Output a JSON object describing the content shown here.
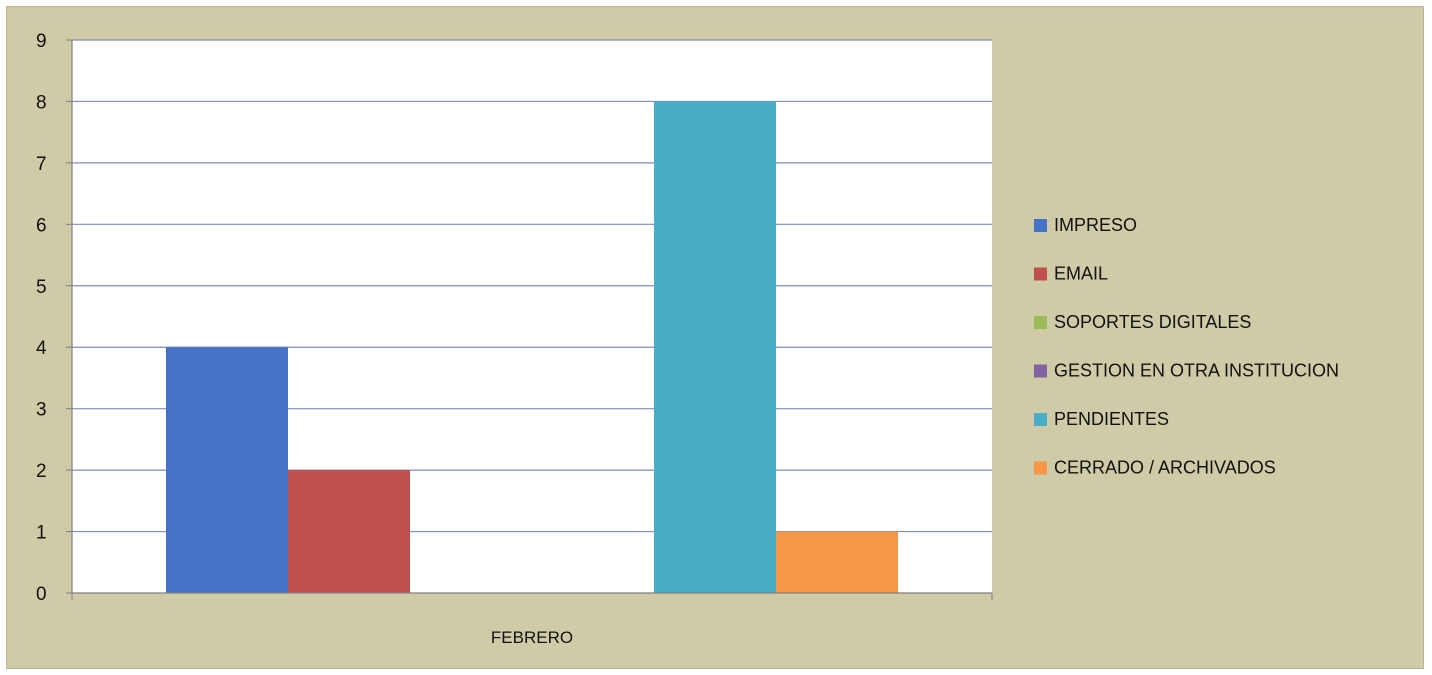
{
  "chart_data": {
    "type": "bar",
    "categories": [
      "FEBRERO"
    ],
    "series": [
      {
        "name": "IMPRESO",
        "values": [
          4
        ],
        "color": "#4472c4"
      },
      {
        "name": "EMAIL",
        "values": [
          2
        ],
        "color": "#c0504d"
      },
      {
        "name": "SOPORTES DIGITALES",
        "values": [
          0
        ],
        "color": "#9bbb59"
      },
      {
        "name": "GESTION EN OTRA INSTITUCION",
        "values": [
          0
        ],
        "color": "#8064a2"
      },
      {
        "name": "PENDIENTES",
        "values": [
          8
        ],
        "color": "#4bacc6"
      },
      {
        "name": "CERRADO / ARCHIVADOS",
        "values": [
          1
        ],
        "color": "#f79646"
      }
    ],
    "title": "",
    "xlabel": "",
    "ylabel": "",
    "ylim": [
      0,
      9
    ],
    "yticks": [
      "0",
      "1",
      "2",
      "3",
      "4",
      "5",
      "6",
      "7",
      "8",
      "9"
    ],
    "grid": true,
    "legend_position": "right",
    "plot_background": "#ffffff",
    "chart_background": "#cfcba6",
    "gridline_color": "#7f8cbf"
  }
}
